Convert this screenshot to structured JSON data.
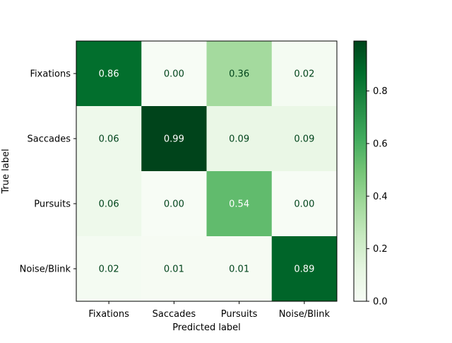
{
  "chart_data": {
    "type": "heatmap",
    "title": "",
    "xlabel": "Predicted label",
    "ylabel": "True label",
    "x_categories": [
      "Fixations",
      "Saccades",
      "Pursuits",
      "Noise/Blink"
    ],
    "y_categories": [
      "Fixations",
      "Saccades",
      "Pursuits",
      "Noise/Blink"
    ],
    "values": [
      [
        0.86,
        0.0,
        0.36,
        0.02
      ],
      [
        0.06,
        0.99,
        0.09,
        0.09
      ],
      [
        0.06,
        0.0,
        0.54,
        0.0
      ],
      [
        0.02,
        0.01,
        0.01,
        0.89
      ]
    ],
    "value_labels": [
      [
        "0.86",
        "0.00",
        "0.36",
        "0.02"
      ],
      [
        "0.06",
        "0.99",
        "0.09",
        "0.09"
      ],
      [
        "0.06",
        "0.00",
        "0.54",
        "0.00"
      ],
      [
        "0.02",
        "0.01",
        "0.01",
        "0.89"
      ]
    ],
    "colormap": "Greens",
    "colormap_stops": [
      "#f7fcf5",
      "#e5f5e0",
      "#c7e9c0",
      "#a1d99b",
      "#74c476",
      "#41ab5d",
      "#238b45",
      "#006d2c",
      "#00441b"
    ],
    "color_range": [
      0.0,
      0.99
    ],
    "colorbar": {
      "ticks": [
        0.0,
        0.2,
        0.4,
        0.6,
        0.8
      ],
      "tick_labels": [
        "0.0",
        "0.2",
        "0.4",
        "0.6",
        "0.8"
      ]
    },
    "text_color_dark": "#00441b",
    "text_color_light": "#ffffff"
  }
}
